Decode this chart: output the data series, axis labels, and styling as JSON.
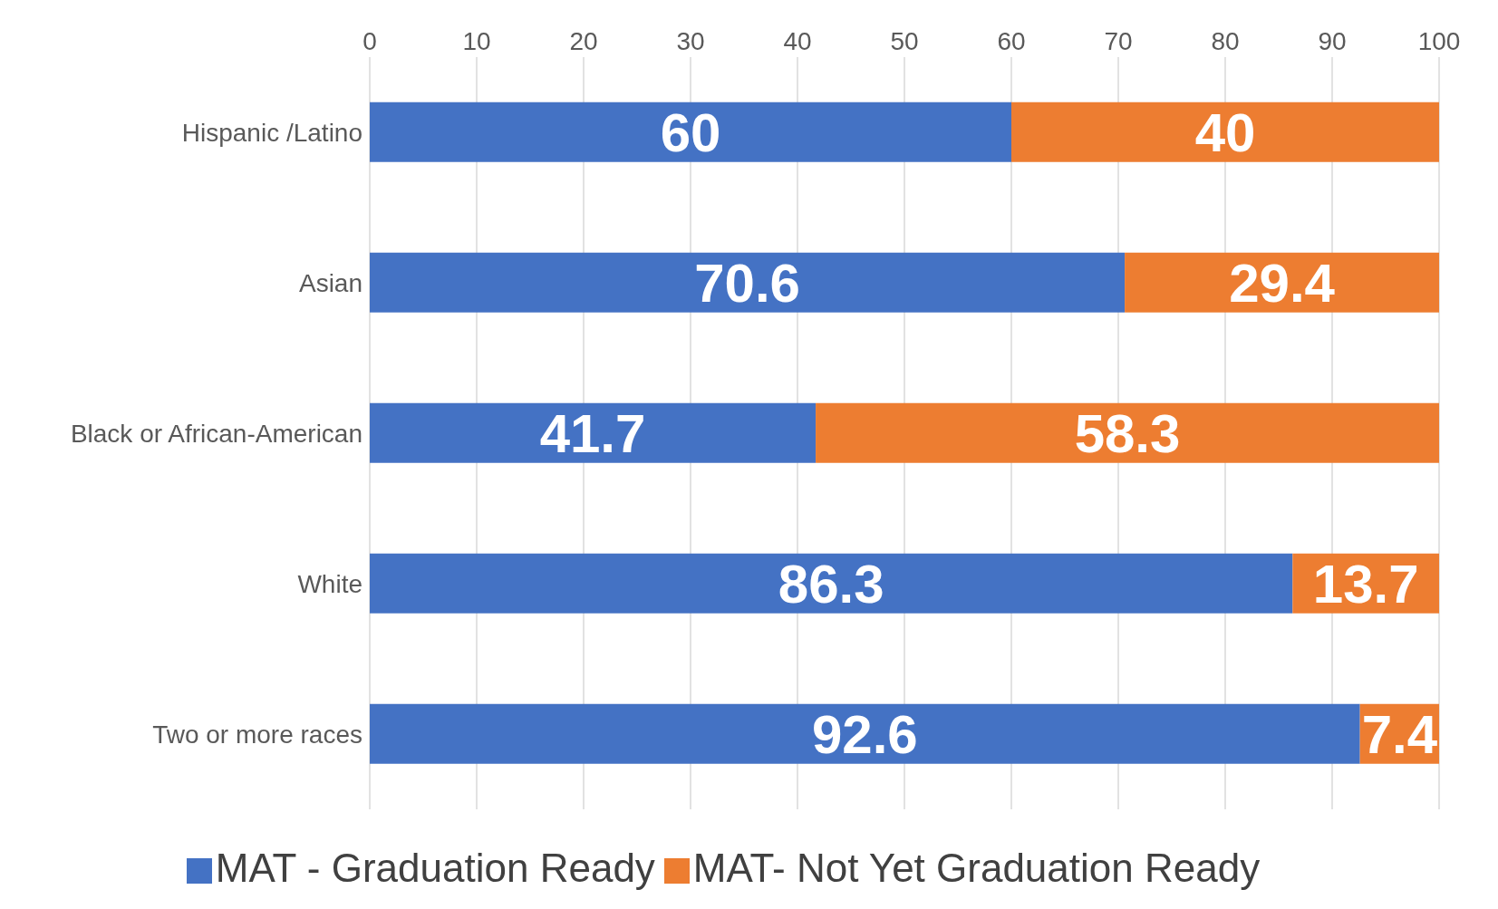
{
  "chart_data": {
    "type": "bar",
    "orientation": "horizontal",
    "stacked": true,
    "categories": [
      "Hispanic /Latino",
      "Asian",
      "Black or African-American",
      "White",
      "Two or more races"
    ],
    "series": [
      {
        "name": "MAT - Graduation Ready",
        "color": "#4472c4",
        "values": [
          60,
          70.6,
          41.7,
          86.3,
          92.6
        ]
      },
      {
        "name": "MAT- Not Yet Graduation Ready",
        "color": "#ed7d31",
        "values": [
          40,
          29.4,
          58.3,
          13.7,
          7.4
        ]
      }
    ],
    "xlim": [
      0,
      100
    ],
    "xticks": [
      0,
      10,
      20,
      30,
      40,
      50,
      60,
      70,
      80,
      90,
      100
    ],
    "grid": "x",
    "legend": "bottom",
    "data_labels": true
  }
}
